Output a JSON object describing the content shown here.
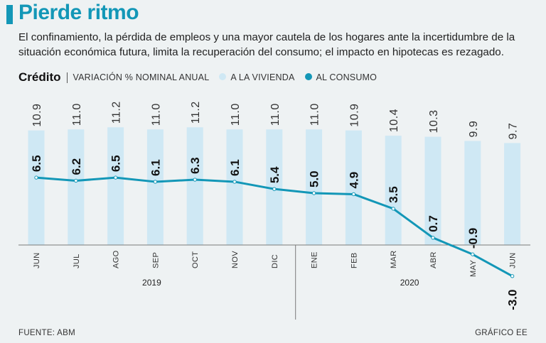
{
  "header": {
    "title": "Pierde ritmo",
    "subtitle": "El confinamiento, la pérdida de empleos y una mayor cautela de los hogares ante la incertidumbre de la situación económica futura, limita la recuperación del consumo; el impacto en hipotecas es rezagado."
  },
  "legend": {
    "title": "Crédito",
    "measure": "VARIACIÓN % NOMINAL ANUAL",
    "series_vivienda": "A LA VIVIENDA",
    "series_consumo": "AL CONSUMO"
  },
  "footer": {
    "source": "FUENTE: ABM",
    "credit": "GRÁFICO EE"
  },
  "colors": {
    "accent": "#1397b7",
    "bar": "#cfe8f4",
    "line": "#1397b7"
  },
  "chart_data": {
    "type": "bar",
    "categories": [
      "JUN",
      "JUL",
      "AGO",
      "SEP",
      "OCT",
      "NOV",
      "DIC",
      "ENE",
      "FEB",
      "MAR",
      "ABR",
      "MAY",
      "JUN"
    ],
    "year_groups": [
      {
        "label": "2019",
        "start": 0,
        "end": 6
      },
      {
        "label": "2020",
        "start": 7,
        "end": 12
      }
    ],
    "series": [
      {
        "name": "A LA VIVIENDA",
        "type": "bar",
        "values": [
          10.9,
          11.0,
          11.2,
          11.0,
          11.2,
          11.0,
          11.0,
          11.0,
          10.9,
          10.4,
          10.3,
          9.9,
          9.7
        ]
      },
      {
        "name": "AL CONSUMO",
        "type": "line",
        "values": [
          6.5,
          6.2,
          6.5,
          6.1,
          6.3,
          6.1,
          5.4,
          5.0,
          4.9,
          3.5,
          0.7,
          -0.9,
          -3.0
        ]
      }
    ],
    "value_labels": {
      "A LA VIVIENDA": [
        "10.9",
        "11.0",
        "11.2",
        "11.0",
        "11.2",
        "11.0",
        "11.0",
        "11.0",
        "10.9",
        "10.4",
        "10.3",
        "9.9",
        "9.7"
      ],
      "AL CONSUMO": [
        "6.5",
        "6.2",
        "6.5",
        "6.1",
        "6.3",
        "6.1",
        "5.4",
        "5.0",
        "4.9",
        "3.5",
        "0.7",
        "-0.9",
        "-3.0"
      ]
    },
    "title": "Crédito",
    "ylabel": "VARIACIÓN % NOMINAL ANUAL",
    "grid": false,
    "legend_position": "top-left"
  }
}
